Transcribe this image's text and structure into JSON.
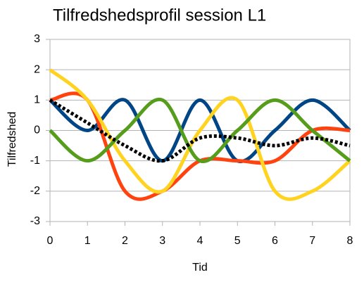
{
  "chart_data": {
    "type": "line",
    "title": "Tilfredshedsprofil session L1",
    "x_label": "Tid",
    "y_label": "Tilfredshed",
    "x": [
      0,
      1,
      2,
      3,
      4,
      5,
      6,
      7,
      8
    ],
    "xlim": [
      0,
      8
    ],
    "xticks": [
      0,
      1,
      2,
      3,
      4,
      5,
      6,
      7,
      8
    ],
    "ylim": [
      -3,
      3
    ],
    "yticks": [
      -3,
      -2,
      -1,
      0,
      1,
      2,
      3
    ],
    "grid": true,
    "smooth": true,
    "series": [
      {
        "color": "#004586",
        "values": [
          1,
          0,
          1,
          -1,
          1,
          -1,
          0,
          1,
          0
        ]
      },
      {
        "color": "#ff420e",
        "values": [
          1,
          1,
          -2,
          -2,
          -1,
          -1,
          -1,
          0,
          0
        ]
      },
      {
        "color": "#ffd320",
        "values": [
          2,
          1,
          -1,
          -2,
          0,
          1,
          -2,
          -2,
          -1
        ]
      },
      {
        "color": "#579d1c",
        "values": [
          0,
          -1,
          0,
          1,
          -1,
          0,
          1,
          0,
          -1
        ]
      },
      {
        "color": "#000000",
        "dashed": true,
        "values": [
          1,
          0.25,
          -0.5,
          -1,
          -0.25,
          -0.25,
          -0.5,
          -0.25,
          -0.5
        ]
      }
    ]
  }
}
